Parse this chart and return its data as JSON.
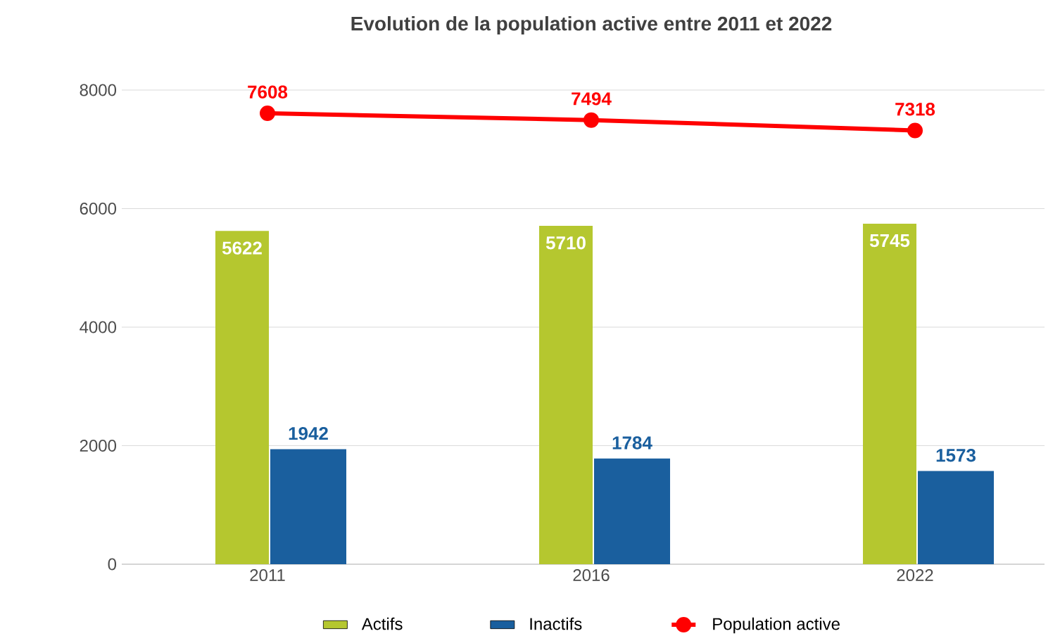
{
  "chart_data": {
    "type": "bar",
    "title": "Evolution de la population active entre 2011 et 2022",
    "categories": [
      "2011",
      "2016",
      "2022"
    ],
    "series": [
      {
        "name": "Actifs",
        "color": "#b5c72f",
        "values": [
          5622,
          5710,
          5745
        ],
        "value_labels": [
          "5622",
          "5710",
          "5745"
        ]
      },
      {
        "name": "Inactifs",
        "color": "#1a5f9e",
        "values": [
          1942,
          1784,
          1573
        ],
        "value_labels": [
          "1942",
          "1784",
          "1573"
        ]
      },
      {
        "name": "Population active",
        "type": "line",
        "color": "#ff0000",
        "marker": "circle",
        "values": [
          7608,
          7494,
          7318
        ],
        "value_labels": [
          "7608",
          "7494",
          "7318"
        ]
      }
    ],
    "ylim": [
      0,
      8000
    ],
    "yticks": [
      0,
      2000,
      4000,
      6000,
      8000
    ],
    "grid": "y",
    "legend": "bottom"
  }
}
